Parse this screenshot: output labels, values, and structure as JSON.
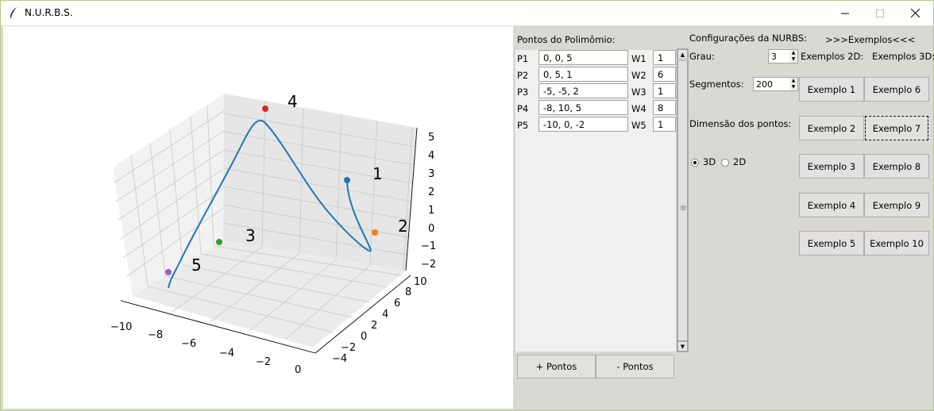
{
  "window": {
    "title": "N.U.R.B.S."
  },
  "plot": {
    "point_labels": [
      "1",
      "2",
      "3",
      "4",
      "5"
    ],
    "z_ticks": [
      "5",
      "4",
      "3",
      "2",
      "1",
      "0",
      "−1",
      "−2"
    ],
    "x_ticks": [
      "−10",
      "−8",
      "−6",
      "−4",
      "−2",
      "0"
    ],
    "y_ticks": [
      "−4",
      "−2",
      "0",
      "2",
      "4",
      "6",
      "8",
      "10"
    ],
    "point_colors": [
      "#1f77b4",
      "#ff7f0e",
      "#2ca02c",
      "#d62728",
      "#9467bd"
    ],
    "curve_color": "#1f77b4"
  },
  "points_panel": {
    "title": "Pontos do Polimômio:",
    "rows": [
      {
        "p_label": "P1",
        "coords": "0, 0, 5",
        "w_label": "W1",
        "weight": "1"
      },
      {
        "p_label": "P2",
        "coords": "0, 5, 1",
        "w_label": "W2",
        "weight": "6"
      },
      {
        "p_label": "P3",
        "coords": "-5, -5, 2",
        "w_label": "W3",
        "weight": "1"
      },
      {
        "p_label": "P4",
        "coords": "-8, 10, 5",
        "w_label": "W4",
        "weight": "8"
      },
      {
        "p_label": "P5",
        "coords": "-10, 0, -2",
        "w_label": "W5",
        "weight": "1"
      }
    ],
    "add_button": "+ Pontos",
    "remove_button": "- Pontos"
  },
  "config": {
    "title": "Configurações da NURBS:",
    "grau_label": "Grau:",
    "grau_value": "3",
    "segmentos_label": "Segmentos:",
    "segmentos_value": "200",
    "dimensao_label": "Dimensão dos pontos:",
    "radio_3d": "3D",
    "radio_2d": "2D"
  },
  "examples": {
    "title": ">>>Exemplos<<<",
    "label_2d": "Exemplos 2D:",
    "label_3d": "Exemplos 3D:",
    "buttons_2d": [
      "Exemplo 1",
      "Exemplo 2",
      "Exemplo 3",
      "Exemplo 4",
      "Exemplo 5"
    ],
    "buttons_3d": [
      "Exemplo 6",
      "Exemplo 7",
      "Exemplo 8",
      "Exemplo 9",
      "Exemplo 10"
    ]
  }
}
